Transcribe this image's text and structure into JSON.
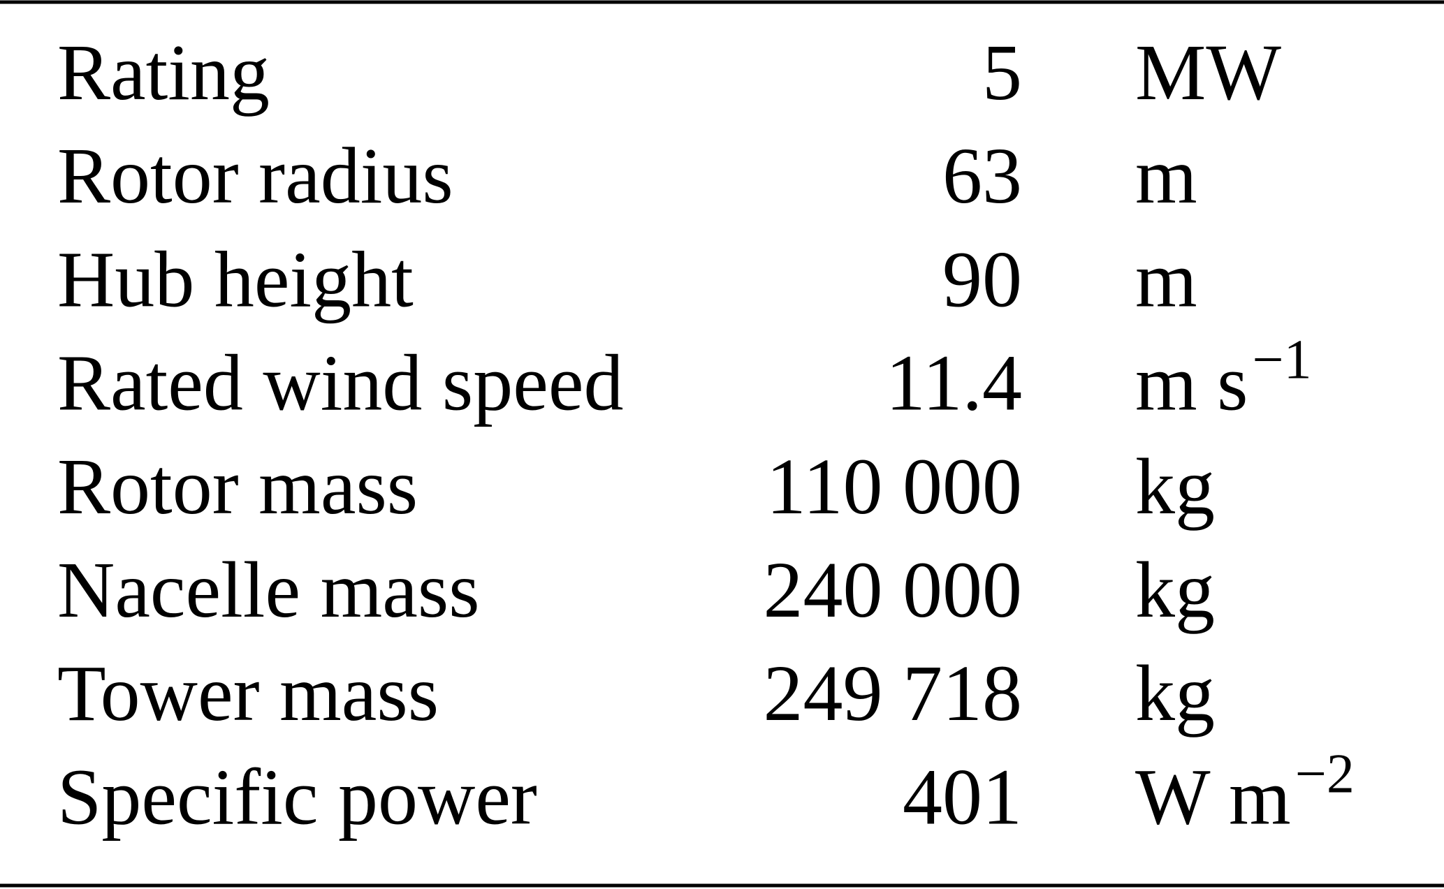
{
  "table": {
    "rows": [
      {
        "label": "Rating",
        "value": "5",
        "unit": "MW"
      },
      {
        "label": "Rotor radius",
        "value": "63",
        "unit": "m"
      },
      {
        "label": "Hub height",
        "value": "90",
        "unit": "m"
      },
      {
        "label": "Rated wind speed",
        "value": "11.4",
        "unit": "m s",
        "unit_sup": "−1"
      },
      {
        "label": "Rotor mass",
        "value": "110 000",
        "unit": "kg"
      },
      {
        "label": "Nacelle mass",
        "value": "240 000",
        "unit": "kg"
      },
      {
        "label": "Tower mass",
        "value": "249 718",
        "unit": "kg"
      },
      {
        "label": "Specific power",
        "value": "401",
        "unit": "W m",
        "unit_sup": "−2"
      }
    ]
  }
}
